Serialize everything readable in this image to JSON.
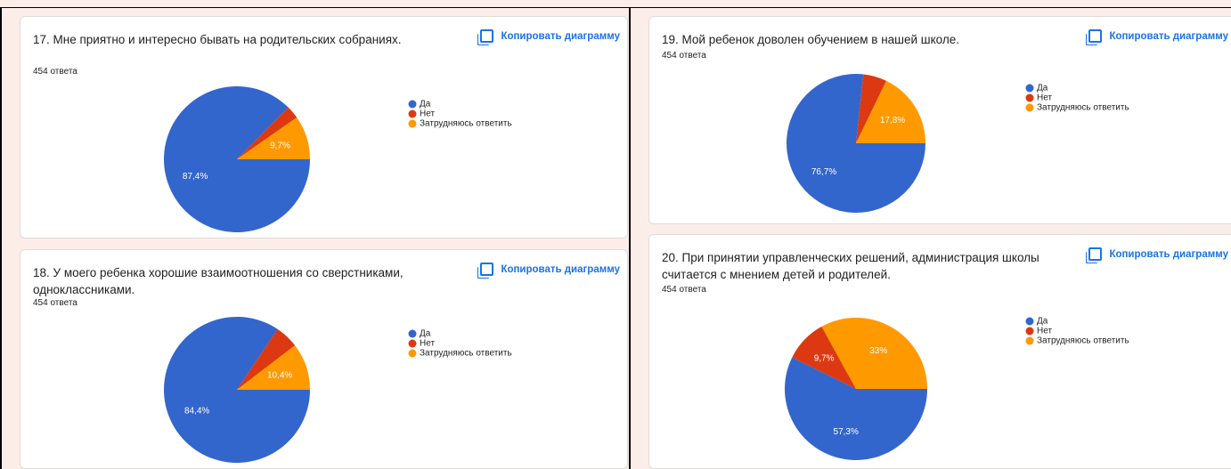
{
  "chart_data": [
    {
      "type": "pie",
      "title": "17. Мне приятно и интересно бывать на родительских собраниях.",
      "subtitle": "454 ответа",
      "copy_button": "Копировать диаграмму",
      "categories": [
        "Да",
        "Нет",
        "Затрудняюсь ответить"
      ],
      "values": [
        87.4,
        2.9,
        9.7
      ],
      "value_labels": [
        "87,4%",
        null,
        "9,7%"
      ],
      "colors": [
        "#3366cc",
        "#dc3912",
        "#ff9900"
      ]
    },
    {
      "type": "pie",
      "title": "18. У моего ребенка хорошие взаимоотношения со сверстниками, одноклассниками.",
      "subtitle": "454 ответа",
      "copy_button": "Копировать диаграмму",
      "categories": [
        "Да",
        "Нет",
        "Затрудняюсь ответить"
      ],
      "values": [
        84.4,
        5.2,
        10.4
      ],
      "value_labels": [
        "84,4%",
        null,
        "10,4%"
      ],
      "colors": [
        "#3366cc",
        "#dc3912",
        "#ff9900"
      ]
    },
    {
      "type": "pie",
      "title": "19. Мой ребенок доволен обучением в нашей школе.",
      "subtitle": "454 ответа",
      "copy_button": "Копировать диаграмму",
      "categories": [
        "Да",
        "Нет",
        "Затрудняюсь ответить"
      ],
      "values": [
        76.7,
        5.5,
        17.8
      ],
      "value_labels": [
        "76,7%",
        null,
        "17,8%"
      ],
      "colors": [
        "#3366cc",
        "#dc3912",
        "#ff9900"
      ]
    },
    {
      "type": "pie",
      "title": "20. При принятии управленческих решений, администрация школы считается с мнением детей и родителей.",
      "subtitle": "454 ответа",
      "copy_button": "Копировать диаграмму",
      "categories": [
        "Да",
        "Нет",
        "Затрудняюсь ответить"
      ],
      "values": [
        57.3,
        9.7,
        33
      ],
      "value_labels": [
        "57,3%",
        "9,7%",
        "33%"
      ],
      "colors": [
        "#3366cc",
        "#dc3912",
        "#ff9900"
      ]
    }
  ]
}
